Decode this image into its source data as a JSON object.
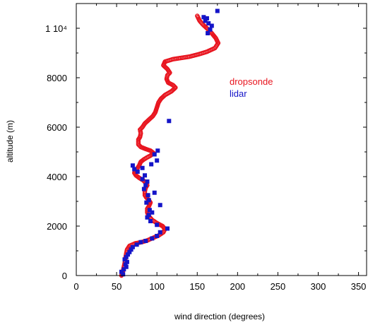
{
  "chart_data": {
    "type": "scatter",
    "xlabel": "wind direction (degrees)",
    "ylabel": "altitude (m)",
    "xlim": [
      0,
      360
    ],
    "ylim": [
      0,
      11000
    ],
    "x_ticks": [
      0,
      50,
      100,
      150,
      200,
      250,
      300,
      350
    ],
    "y_ticks": [
      0,
      2000,
      4000,
      6000,
      8000,
      10000
    ],
    "y_tick_labels": [
      "0",
      "2000",
      "4000",
      "6000",
      "8000",
      "1 10⁴"
    ],
    "grid": false,
    "legend_position": "inside-right",
    "series": [
      {
        "name": "dropsonde",
        "color": "#e8141e",
        "marker": "circle",
        "points": [
          [
            56,
            0
          ],
          [
            57,
            100
          ],
          [
            58,
            200
          ],
          [
            59,
            350
          ],
          [
            60,
            500
          ],
          [
            61,
            700
          ],
          [
            62,
            900
          ],
          [
            63,
            1050
          ],
          [
            66,
            1200
          ],
          [
            73,
            1300
          ],
          [
            78,
            1330
          ],
          [
            83,
            1370
          ],
          [
            88,
            1420
          ],
          [
            95,
            1520
          ],
          [
            102,
            1620
          ],
          [
            108,
            1750
          ],
          [
            110,
            1880
          ],
          [
            107,
            2000
          ],
          [
            100,
            2120
          ],
          [
            94,
            2250
          ],
          [
            90,
            2400
          ],
          [
            88,
            2550
          ],
          [
            88,
            2700
          ],
          [
            90,
            2800
          ],
          [
            92,
            2950
          ],
          [
            90,
            3050
          ],
          [
            87,
            3150
          ],
          [
            85,
            3250
          ],
          [
            85,
            3400
          ],
          [
            86,
            3550
          ],
          [
            88,
            3650
          ],
          [
            86,
            3750
          ],
          [
            83,
            3850
          ],
          [
            78,
            3950
          ],
          [
            74,
            4050
          ],
          [
            72,
            4150
          ],
          [
            73,
            4250
          ],
          [
            76,
            4350
          ],
          [
            78,
            4450
          ],
          [
            80,
            4600
          ],
          [
            84,
            4700
          ],
          [
            88,
            4780
          ],
          [
            92,
            4850
          ],
          [
            96,
            4950
          ],
          [
            92,
            5050
          ],
          [
            86,
            5120
          ],
          [
            80,
            5200
          ],
          [
            77,
            5300
          ],
          [
            77,
            5500
          ],
          [
            79,
            5600
          ],
          [
            80,
            5750
          ],
          [
            79,
            5900
          ],
          [
            82,
            6000
          ],
          [
            85,
            6150
          ],
          [
            90,
            6300
          ],
          [
            95,
            6450
          ],
          [
            98,
            6600
          ],
          [
            100,
            6800
          ],
          [
            102,
            7000
          ],
          [
            105,
            7150
          ],
          [
            110,
            7300
          ],
          [
            118,
            7450
          ],
          [
            123,
            7600
          ],
          [
            120,
            7700
          ],
          [
            114,
            7800
          ],
          [
            112,
            7950
          ],
          [
            113,
            8100
          ],
          [
            116,
            8200
          ],
          [
            113,
            8350
          ],
          [
            108,
            8500
          ],
          [
            110,
            8650
          ],
          [
            120,
            8750
          ],
          [
            130,
            8800
          ],
          [
            140,
            8850
          ],
          [
            152,
            8950
          ],
          [
            162,
            9050
          ],
          [
            172,
            9200
          ],
          [
            176,
            9400
          ],
          [
            173,
            9600
          ],
          [
            168,
            9800
          ],
          [
            162,
            10000
          ],
          [
            157,
            10150
          ],
          [
            153,
            10300
          ],
          [
            150,
            10500
          ]
        ]
      },
      {
        "name": "lidar",
        "color": "#1414c8",
        "marker": "square",
        "points": [
          [
            58,
            50
          ],
          [
            56,
            150
          ],
          [
            59,
            250
          ],
          [
            62,
            350
          ],
          [
            61,
            450
          ],
          [
            63,
            550
          ],
          [
            60,
            650
          ],
          [
            62,
            750
          ],
          [
            64,
            850
          ],
          [
            66,
            950
          ],
          [
            68,
            1050
          ],
          [
            70,
            1150
          ],
          [
            75,
            1250
          ],
          [
            80,
            1350
          ],
          [
            86,
            1400
          ],
          [
            94,
            1500
          ],
          [
            100,
            1600
          ],
          [
            104,
            1750
          ],
          [
            113,
            1900
          ],
          [
            100,
            2050
          ],
          [
            92,
            2200
          ],
          [
            88,
            2350
          ],
          [
            90,
            2450
          ],
          [
            94,
            2550
          ],
          [
            91,
            2650
          ],
          [
            104,
            2850
          ],
          [
            87,
            2950
          ],
          [
            90,
            3050
          ],
          [
            89,
            3250
          ],
          [
            97,
            3350
          ],
          [
            84,
            3500
          ],
          [
            86,
            3650
          ],
          [
            88,
            3800
          ],
          [
            82,
            3900
          ],
          [
            85,
            4050
          ],
          [
            76,
            4200
          ],
          [
            72,
            4300
          ],
          [
            82,
            4350
          ],
          [
            70,
            4450
          ],
          [
            93,
            4500
          ],
          [
            100,
            4650
          ],
          [
            97,
            4900
          ],
          [
            101,
            5050
          ],
          [
            115,
            6250
          ],
          [
            163,
            9800
          ],
          [
            166,
            9950
          ],
          [
            168,
            10100
          ],
          [
            164,
            10200
          ],
          [
            160,
            10300
          ],
          [
            162,
            10400
          ],
          [
            158,
            10450
          ],
          [
            175,
            10700
          ]
        ]
      }
    ]
  }
}
